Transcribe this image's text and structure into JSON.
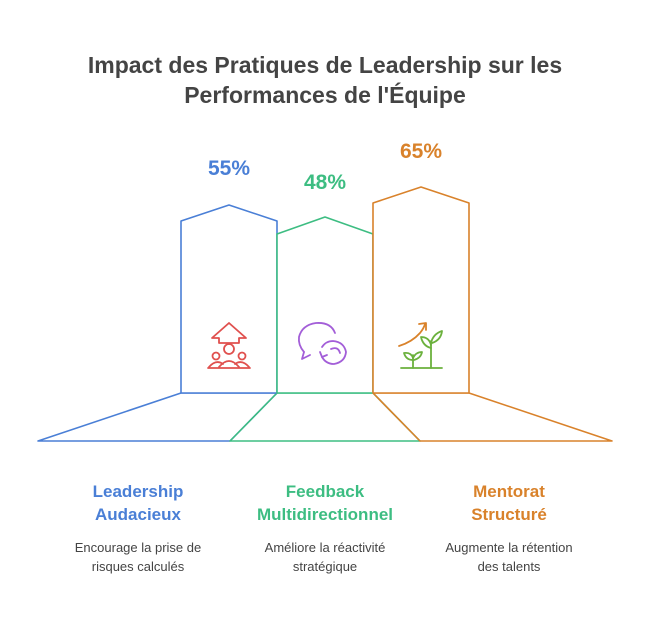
{
  "title": {
    "line1": "Impact des Pratiques de Leadership sur les",
    "line2": "Performances de l'Équipe"
  },
  "colors": {
    "blue": "#4a7fd6",
    "green": "#3dbd82",
    "orange": "#d9822b",
    "icon_red": "#e0504e",
    "icon_purple": "#a35ed8",
    "icon_green": "#6bb13d",
    "icon_orange": "#d9822b"
  },
  "chart_data": {
    "type": "bar",
    "categories": [
      "Leadership Audacieux",
      "Feedback Multidirectionnel",
      "Mentorat Structuré"
    ],
    "values": [
      55,
      48,
      65
    ],
    "value_labels": [
      "55%",
      "48%",
      "65%"
    ],
    "unit": "%"
  },
  "items": [
    {
      "value_label": "55%",
      "name_line1": "Leadership",
      "name_line2": "Audacieux",
      "desc_line1": "Encourage la prise de",
      "desc_line2": "risques calculés",
      "icon": "team-growth-icon"
    },
    {
      "value_label": "48%",
      "name_line1": "Feedback",
      "name_line2": "Multidirectionnel",
      "desc_line1": "Améliore la réactivité",
      "desc_line2": "stratégique",
      "icon": "feedback-cycle-icon"
    },
    {
      "value_label": "65%",
      "name_line1": "Mentorat",
      "name_line2": "Structuré",
      "desc_line1": "Augmente la rétention",
      "desc_line2": "des talents",
      "icon": "plant-growth-icon"
    }
  ]
}
